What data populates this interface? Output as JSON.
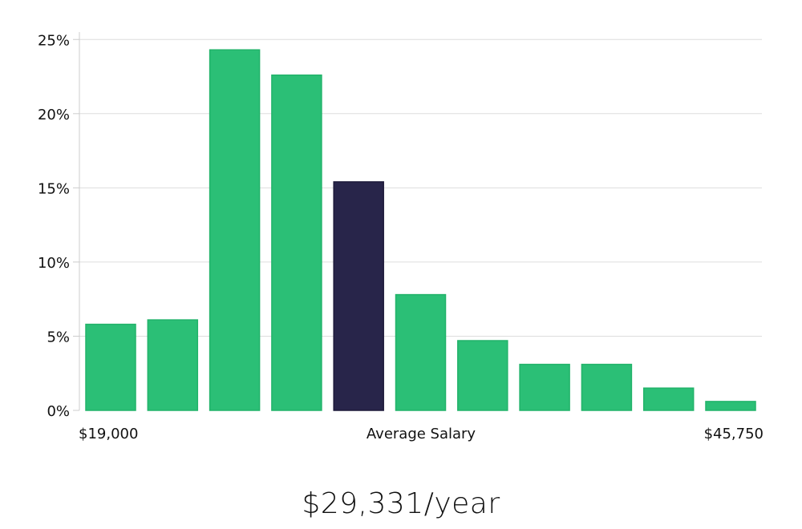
{
  "chart_data": {
    "type": "bar",
    "y_ticks": [
      {
        "value": 0,
        "label": "0%"
      },
      {
        "value": 5,
        "label": "5%"
      },
      {
        "value": 10,
        "label": "10%"
      },
      {
        "value": 15,
        "label": "15%"
      },
      {
        "value": 20,
        "label": "20%"
      },
      {
        "value": 25,
        "label": "25%"
      }
    ],
    "ylim": [
      0,
      25.5
    ],
    "grid": true,
    "x_labels": {
      "left": "$19,000",
      "center": "Average Salary",
      "right": "$45,750"
    },
    "values": [
      5.8,
      6.1,
      24.3,
      22.6,
      15.4,
      7.8,
      4.7,
      3.1,
      3.1,
      1.5,
      0.6
    ],
    "highlight_index": 4,
    "colors": {
      "bar": "#2bbf76",
      "bar_edge": "#22b36a",
      "highlight": "#28254a",
      "highlight_edge": "#1d1a3a",
      "grid": "#dddddd",
      "axis": "#cccccc"
    }
  },
  "salary_text": "$29,331/year"
}
